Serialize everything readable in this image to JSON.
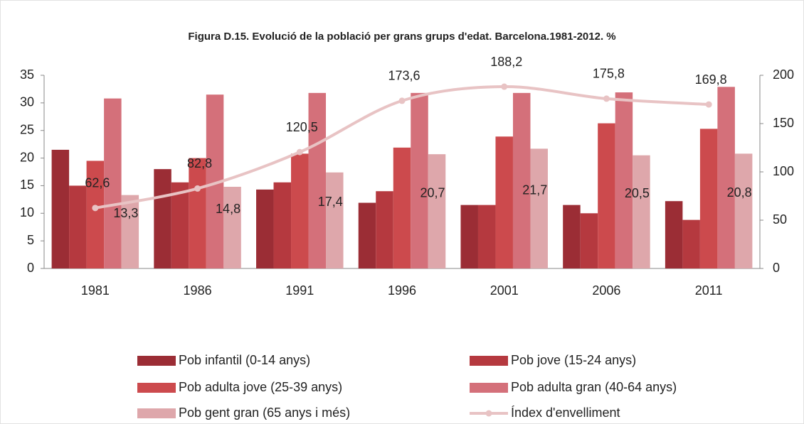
{
  "chart_data": {
    "type": "bar",
    "title": "Figura D.15. Evolució de la població per grans grups d'edat. Barcelona.1981-2012. %",
    "categories": [
      "1981",
      "1986",
      "1991",
      "1996",
      "2001",
      "2006",
      "2011"
    ],
    "ylim": [
      0,
      35
    ],
    "yticks": [
      0,
      5,
      10,
      15,
      20,
      25,
      30,
      35
    ],
    "y2lim": [
      0,
      200
    ],
    "y2ticks": [
      0,
      50,
      100,
      150,
      200
    ],
    "legend": "bottom",
    "series": [
      {
        "name": "Pob infantil (0-14 anys)",
        "color": "#9b2d35",
        "values": [
          21.5,
          18.0,
          14.3,
          11.9,
          11.5,
          11.5,
          12.2
        ]
      },
      {
        "name": "Pob jove (15-24 anys)",
        "color": "#b5393f",
        "values": [
          15.0,
          15.6,
          15.6,
          14.0,
          11.5,
          10.0,
          8.8
        ]
      },
      {
        "name": "Pob adulta jove (25-39 anys)",
        "color": "#cc4a4d",
        "values": [
          19.5,
          20.0,
          20.8,
          21.9,
          23.9,
          26.3,
          25.3
        ]
      },
      {
        "name": "Pob adulta gran (40-64 anys)",
        "color": "#d4707a",
        "values": [
          30.8,
          31.5,
          31.8,
          31.8,
          31.8,
          31.9,
          32.9
        ]
      },
      {
        "name": "Pob gent gran (65 anys i més)",
        "color": "#dea7ab",
        "values": [
          13.3,
          14.8,
          17.4,
          20.7,
          21.7,
          20.5,
          20.8
        ],
        "value_labels": [
          "13,3",
          "14,8",
          "17,4",
          "20,7",
          "21,7",
          "20,5",
          "20,8"
        ]
      },
      {
        "name": "Índex d'envelliment",
        "type": "line",
        "axis": "y2",
        "color": "#e8c3c4",
        "values": [
          62.6,
          82.8,
          120.5,
          173.6,
          188.2,
          175.8,
          169.8
        ],
        "value_labels": [
          "62,6",
          "82,8",
          "120,5",
          "173,6",
          "188,2",
          "175,8",
          "169,8"
        ]
      }
    ]
  }
}
